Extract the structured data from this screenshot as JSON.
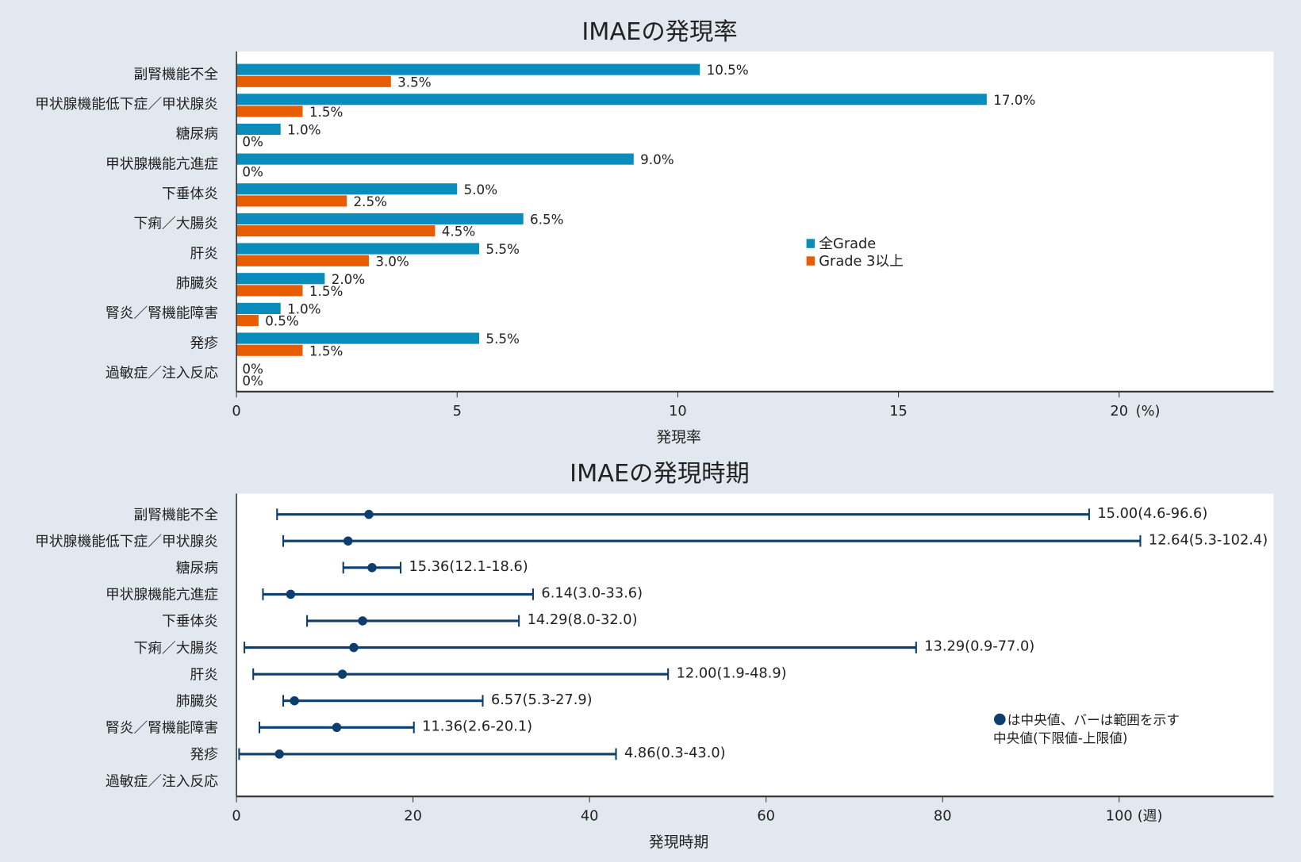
{
  "chart_data": [
    {
      "type": "bar",
      "orientation": "horizontal",
      "title": "IMAEの発現率",
      "xlabel": "発現率",
      "x_unit_label": "(%)",
      "xlim": [
        0,
        23.5
      ],
      "xticks": [
        0,
        5,
        10,
        15,
        20
      ],
      "grid": false,
      "legend_position": "center-right",
      "categories": [
        "副腎機能不全",
        "甲状腺機能低下症／甲状腺炎",
        "糖尿病",
        "甲状腺機能亢進症",
        "下垂体炎",
        "下痢／大腸炎",
        "肝炎",
        "肺臓炎",
        "腎炎／腎機能障害",
        "発疹",
        "過敏症／注入反応"
      ],
      "series": [
        {
          "name": "全Grade",
          "color": "#0a8cbd",
          "values": [
            10.5,
            17.0,
            1.0,
            9.0,
            5.0,
            6.5,
            5.5,
            2.0,
            1.0,
            5.5,
            0
          ],
          "labels": [
            "10.5%",
            "17.0%",
            "1.0%",
            "9.0%",
            "5.0%",
            "6.5%",
            "5.5%",
            "2.0%",
            "1.0%",
            "5.5%",
            "0%"
          ]
        },
        {
          "name": "Grade 3以上",
          "color": "#e85d04",
          "values": [
            3.5,
            1.5,
            0,
            0,
            2.5,
            4.5,
            3.0,
            1.5,
            0.5,
            1.5,
            0
          ],
          "labels": [
            "3.5%",
            "1.5%",
            "0%",
            "0%",
            "2.5%",
            "4.5%",
            "3.0%",
            "1.5%",
            "0.5%",
            "1.5%",
            "0%"
          ]
        }
      ]
    },
    {
      "type": "range",
      "title": "IMAEの発現時期",
      "xlabel": "発現時期",
      "x_unit_label": "(週)",
      "xlim": [
        0,
        117.5
      ],
      "xticks": [
        0,
        20,
        40,
        60,
        80,
        100
      ],
      "grid": false,
      "color": "#0d3f6e",
      "categories": [
        "副腎機能不全",
        "甲状腺機能低下症／甲状腺炎",
        "糖尿病",
        "甲状腺機能亢進症",
        "下垂体炎",
        "下痢／大腸炎",
        "肝炎",
        "肺臓炎",
        "腎炎／腎機能障害",
        "発疹",
        "過敏症／注入反応"
      ],
      "median": [
        15.0,
        12.64,
        15.36,
        6.14,
        14.29,
        13.29,
        12.0,
        6.57,
        11.36,
        4.86,
        null
      ],
      "low": [
        4.6,
        5.3,
        12.1,
        3.0,
        8.0,
        0.9,
        1.9,
        5.3,
        2.6,
        0.3,
        null
      ],
      "high": [
        96.6,
        102.4,
        18.6,
        33.6,
        32.0,
        77.0,
        48.9,
        27.9,
        20.1,
        43.0,
        null
      ],
      "labels": [
        "15.00(4.6-96.6)",
        "12.64(5.3-102.4)",
        "15.36(12.1-18.6)",
        "6.14(3.0-33.6)",
        "14.29(8.0-32.0)",
        "13.29(0.9-77.0)",
        "12.00(1.9-48.9)",
        "6.57(5.3-27.9)",
        "11.36(2.6-20.1)",
        "4.86(0.3-43.0)",
        ""
      ],
      "legend_lines": [
        "は中央値、バーは範囲を示す",
        "中央値(下限値-上限値)"
      ]
    }
  ]
}
